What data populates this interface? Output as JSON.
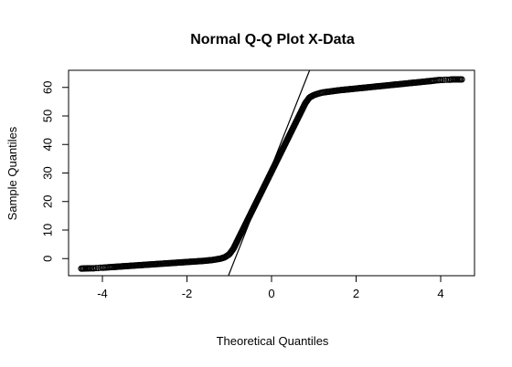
{
  "chart_data": {
    "type": "scatter",
    "title": "Normal Q-Q Plot X-Data",
    "xlabel": "Theoretical Quantiles",
    "ylabel": "Sample Quantiles",
    "xlim": [
      -4.8,
      4.8
    ],
    "ylim": [
      -6,
      66
    ],
    "x_ticks": [
      -4,
      -2,
      0,
      2,
      4
    ],
    "y_ticks": [
      0,
      10,
      20,
      30,
      40,
      50,
      60
    ],
    "grid": false,
    "legend": "none",
    "point_color": "#000000",
    "series": [
      {
        "values": [
          {
            "x": -4.5,
            "y": -3.5
          },
          {
            "x": -4.3,
            "y": -3.4
          },
          {
            "x": -4.2,
            "y": -3.4
          },
          {
            "x": -4.15,
            "y": -3.3
          },
          {
            "x": -4.1,
            "y": -3.3
          },
          {
            "x": -4.05,
            "y": -3.2
          },
          {
            "x": -4.0,
            "y": -3.2
          },
          {
            "x": -3.9,
            "y": -3.1
          },
          {
            "x": -3.8,
            "y": -3.0
          },
          {
            "x": -3.6,
            "y": -2.8
          },
          {
            "x": -3.4,
            "y": -2.6
          },
          {
            "x": -3.2,
            "y": -2.4
          },
          {
            "x": -3.0,
            "y": -2.2
          },
          {
            "x": -2.8,
            "y": -2.0
          },
          {
            "x": -2.6,
            "y": -1.8
          },
          {
            "x": -2.4,
            "y": -1.6
          },
          {
            "x": -2.2,
            "y": -1.4
          },
          {
            "x": -2.0,
            "y": -1.2
          },
          {
            "x": -1.8,
            "y": -1.0
          },
          {
            "x": -1.6,
            "y": -0.8
          },
          {
            "x": -1.4,
            "y": -0.5
          },
          {
            "x": -1.2,
            "y": 0.0
          },
          {
            "x": -1.1,
            "y": 0.5
          },
          {
            "x": -1.0,
            "y": 1.5
          },
          {
            "x": -0.95,
            "y": 2.5
          },
          {
            "x": -0.9,
            "y": 3.5
          },
          {
            "x": -0.85,
            "y": 5.0
          },
          {
            "x": -0.8,
            "y": 6.5
          },
          {
            "x": -0.75,
            "y": 8.0
          },
          {
            "x": -0.7,
            "y": 9.5
          },
          {
            "x": -0.65,
            "y": 11.0
          },
          {
            "x": -0.6,
            "y": 12.5
          },
          {
            "x": -0.55,
            "y": 14.0
          },
          {
            "x": -0.5,
            "y": 15.5
          },
          {
            "x": -0.45,
            "y": 17.0
          },
          {
            "x": -0.4,
            "y": 18.5
          },
          {
            "x": -0.35,
            "y": 20.0
          },
          {
            "x": -0.3,
            "y": 21.5
          },
          {
            "x": -0.25,
            "y": 23.0
          },
          {
            "x": -0.2,
            "y": 24.5
          },
          {
            "x": -0.15,
            "y": 26.0
          },
          {
            "x": -0.1,
            "y": 27.5
          },
          {
            "x": -0.05,
            "y": 29.0
          },
          {
            "x": 0.0,
            "y": 30.5
          },
          {
            "x": 0.05,
            "y": 32.0
          },
          {
            "x": 0.1,
            "y": 33.5
          },
          {
            "x": 0.15,
            "y": 35.0
          },
          {
            "x": 0.2,
            "y": 36.5
          },
          {
            "x": 0.25,
            "y": 38.0
          },
          {
            "x": 0.3,
            "y": 39.5
          },
          {
            "x": 0.35,
            "y": 41.0
          },
          {
            "x": 0.4,
            "y": 42.5
          },
          {
            "x": 0.45,
            "y": 44.0
          },
          {
            "x": 0.5,
            "y": 45.5
          },
          {
            "x": 0.55,
            "y": 47.0
          },
          {
            "x": 0.6,
            "y": 48.5
          },
          {
            "x": 0.65,
            "y": 50.0
          },
          {
            "x": 0.7,
            "y": 51.5
          },
          {
            "x": 0.75,
            "y": 53.0
          },
          {
            "x": 0.8,
            "y": 54.5
          },
          {
            "x": 0.85,
            "y": 55.5
          },
          {
            "x": 0.9,
            "y": 56.5
          },
          {
            "x": 1.0,
            "y": 57.3
          },
          {
            "x": 1.1,
            "y": 57.8
          },
          {
            "x": 1.2,
            "y": 58.2
          },
          {
            "x": 1.4,
            "y": 58.6
          },
          {
            "x": 1.6,
            "y": 59.0
          },
          {
            "x": 1.8,
            "y": 59.3
          },
          {
            "x": 2.0,
            "y": 59.6
          },
          {
            "x": 2.2,
            "y": 59.9
          },
          {
            "x": 2.4,
            "y": 60.2
          },
          {
            "x": 2.6,
            "y": 60.5
          },
          {
            "x": 2.8,
            "y": 60.8
          },
          {
            "x": 3.0,
            "y": 61.1
          },
          {
            "x": 3.2,
            "y": 61.4
          },
          {
            "x": 3.4,
            "y": 61.7
          },
          {
            "x": 3.6,
            "y": 62.0
          },
          {
            "x": 3.8,
            "y": 62.3
          },
          {
            "x": 3.9,
            "y": 62.5
          },
          {
            "x": 4.0,
            "y": 62.6
          },
          {
            "x": 4.05,
            "y": 62.6
          },
          {
            "x": 4.1,
            "y": 62.7
          },
          {
            "x": 4.15,
            "y": 62.7
          },
          {
            "x": 4.2,
            "y": 62.7
          },
          {
            "x": 4.3,
            "y": 62.8
          },
          {
            "x": 4.5,
            "y": 62.8
          }
        ]
      }
    ],
    "reference_line": {
      "points": [
        {
          "x": -1.02,
          "y": -6
        },
        {
          "x": 0.9,
          "y": 66
        }
      ]
    }
  }
}
